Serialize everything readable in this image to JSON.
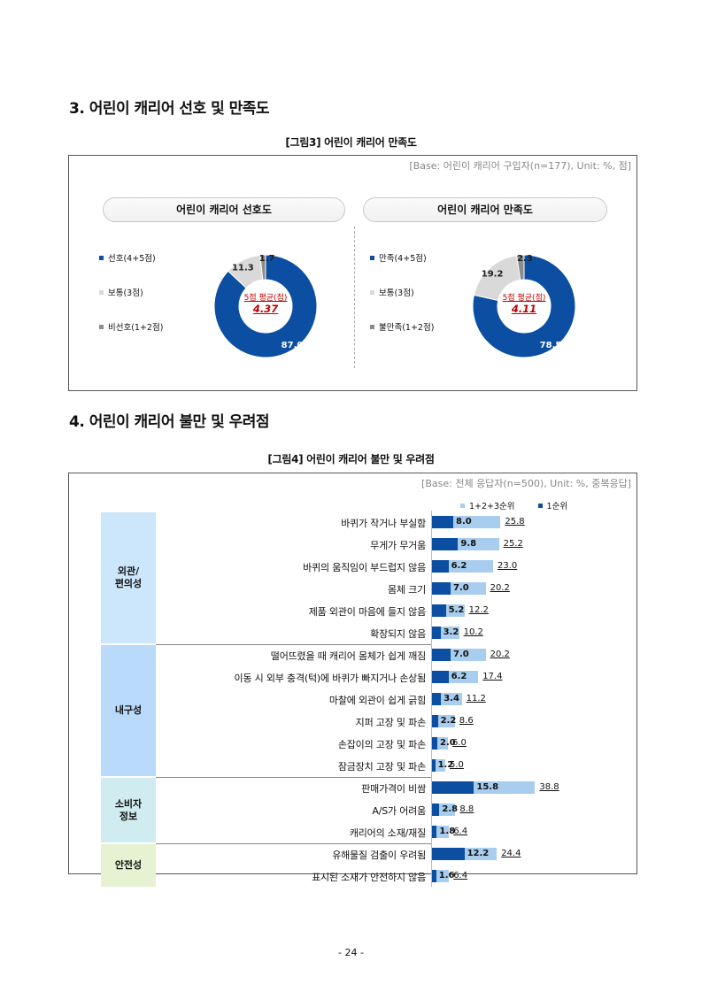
{
  "section3": {
    "title": "3. 어린이 캐리어 선호 및 만족도"
  },
  "figure3": {
    "caption": "[그림3] 어린이 캐리어 만족도",
    "base_note": "[Base: 어린이 캐리어 구입자(n=177), Unit: %, 점]"
  },
  "section4": {
    "title": "4. 어린이 캐리어 불만 및 우려점"
  },
  "figure4": {
    "caption": "[그림4] 어린이 캐리어 불만 및 우려점",
    "base_note": "[Base: 전체 응답자(n=500), Unit: %, 중복응답]"
  },
  "colors": {
    "dark_blue": "#0b4ea2",
    "light_blue": "#a9cdee",
    "light_gray": "#d9d9d9",
    "dark_gray": "#8c8c8c",
    "avg_red": "#c00000"
  },
  "page_number": "- 24 -",
  "chart_data": [
    {
      "type": "pie",
      "title": "어린이 캐리어 선호도",
      "labels": [
        "선호(4+5점)",
        "보통(3점)",
        "비선호(1+2점)"
      ],
      "values": [
        87.0,
        11.3,
        1.7
      ],
      "value_labels": [
        "87.0",
        "11.3",
        "1.7"
      ],
      "colors": [
        "#0b4ea2",
        "#d9d9d9",
        "#8c8c8c"
      ],
      "center_label": "5점 평균(점)",
      "center_value": "4.37",
      "legend_position": "left"
    },
    {
      "type": "pie",
      "title": "어린이 캐리어 만족도",
      "labels": [
        "만족(4+5점)",
        "보통(3점)",
        "불만족(1+2점)"
      ],
      "values": [
        78.5,
        19.2,
        2.3
      ],
      "value_labels": [
        "78.5",
        "19.2",
        "2.3"
      ],
      "colors": [
        "#0b4ea2",
        "#d9d9d9",
        "#8c8c8c"
      ],
      "center_label": "5점 평균(점)",
      "center_value": "4.11",
      "legend_position": "left"
    },
    {
      "type": "bar",
      "orientation": "horizontal",
      "legend_position": "top-right",
      "series": [
        {
          "name": "1+2+3순위",
          "color": "#a9cdee"
        },
        {
          "name": "1순위",
          "color": "#0b4ea2"
        }
      ],
      "groups": [
        {
          "name": "외관/\n편의성",
          "color": "#cce6fb",
          "rows": [
            0,
            1,
            2,
            3,
            4,
            5
          ]
        },
        {
          "name": "내구성",
          "color": "#b9dafa",
          "rows": [
            6,
            7,
            8,
            9,
            10,
            11
          ]
        },
        {
          "name": "소비자\n정보",
          "color": "#d0ecf0",
          "rows": [
            12,
            13,
            14
          ]
        },
        {
          "name": "안전성",
          "color": "#e6f2d2",
          "rows": [
            15,
            16
          ]
        }
      ],
      "rows": [
        {
          "label": "바퀴가 작거나 부실함",
          "first": 8.0,
          "top3": 25.8
        },
        {
          "label": "무게가 무거움",
          "first": 9.8,
          "top3": 25.2
        },
        {
          "label": "바퀴의 움직임이 부드럽지 않음",
          "first": 6.2,
          "top3": 23.0
        },
        {
          "label": "몸체 크기",
          "first": 7.0,
          "top3": 20.2
        },
        {
          "label": "제품 외관이 마음에 들지 않음",
          "first": 5.2,
          "top3": 12.2
        },
        {
          "label": "확장되지 않음",
          "first": 3.2,
          "top3": 10.2
        },
        {
          "label": "떨어뜨렸을 때 캐리어 몸체가 쉽게 깨짐",
          "first": 7.0,
          "top3": 20.2
        },
        {
          "label": "이동 시 외부 충격(턱)에 바퀴가 빠지거나 손상됨",
          "first": 6.2,
          "top3": 17.4
        },
        {
          "label": "마찰에 외관이 쉽게 긁힘",
          "first": 3.4,
          "top3": 11.2
        },
        {
          "label": "지퍼 고장 및 파손",
          "first": 2.2,
          "top3": 8.6
        },
        {
          "label": "손잡이의 고장 및 파손",
          "first": 2.0,
          "top3": 6.0
        },
        {
          "label": "잠금장치 고장 및 파손",
          "first": 1.2,
          "top3": 5.0
        },
        {
          "label": "판매가격이 비쌈",
          "first": 15.8,
          "top3": 38.8
        },
        {
          "label": "A/S가 어려움",
          "first": 2.8,
          "top3": 8.8
        },
        {
          "label": "캐리어의 소재/재질",
          "first": 1.8,
          "top3": 6.4
        },
        {
          "label": "유해물질 검출이 우려됨",
          "first": 12.2,
          "top3": 24.4
        },
        {
          "label": "표시된 소재가 안전하지 않음",
          "first": 1.6,
          "top3": 6.4
        }
      ]
    }
  ]
}
